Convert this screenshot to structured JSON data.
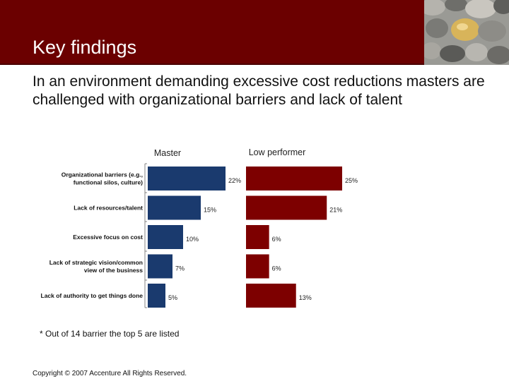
{
  "slide": {
    "title": "Key findings",
    "subtitle": "In an environment demanding excessive cost reductions masters are challenged with organizational barriers and lack of talent",
    "footnote": "* Out of 14 barrier the top 5 are listed",
    "copyright": "Copyright © 2007 Accenture  All Rights Reserved.",
    "colors": {
      "header": "#6b0000",
      "master": "#1a3a6e",
      "low_performer": "#7d0000"
    },
    "decoration": "stones-image"
  },
  "chart_data": {
    "type": "bar",
    "orientation": "horizontal",
    "categories": [
      [
        "Organizational barriers (e.g.,",
        "functional silos, culture)"
      ],
      [
        "Lack of resources/talent"
      ],
      [
        "Excessive focus on cost"
      ],
      [
        "Lack of strategic vision/common",
        "view of the business"
      ],
      [
        "Lack of authority to get things done"
      ]
    ],
    "series": [
      {
        "name": "Master",
        "values": [
          22,
          15,
          10,
          7,
          5
        ],
        "labels": [
          "22%",
          "15%",
          "10%",
          "7%",
          "5%"
        ],
        "color": "#1a3a6e"
      },
      {
        "name": "Low performer",
        "values": [
          25,
          21,
          6,
          6,
          13
        ],
        "labels": [
          "25%",
          "21%",
          "6%",
          "6%",
          "13%"
        ],
        "color": "#7d0000"
      }
    ],
    "unit": "%",
    "grid": false,
    "legend": "series names above each panel"
  }
}
